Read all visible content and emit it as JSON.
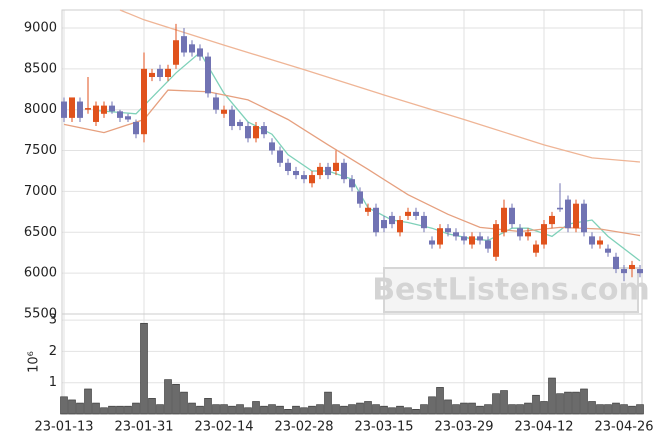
{
  "chart_data": {
    "type": "candlestick",
    "categories": [
      "23-01-13",
      null,
      null,
      null,
      null,
      null,
      null,
      null,
      null,
      null,
      "23-01-31",
      null,
      null,
      null,
      null,
      null,
      null,
      null,
      null,
      null,
      "23-02-14",
      null,
      null,
      null,
      null,
      null,
      null,
      null,
      null,
      null,
      "23-02-28",
      null,
      null,
      null,
      null,
      null,
      null,
      null,
      null,
      null,
      "23-03-15",
      null,
      null,
      null,
      null,
      null,
      null,
      null,
      null,
      null,
      "23-03-29",
      null,
      null,
      null,
      null,
      null,
      null,
      null,
      null,
      null,
      "23-04-12",
      null,
      null,
      null,
      null,
      null,
      null,
      null,
      null,
      null,
      "23-04-26",
      null,
      null
    ],
    "open": [
      8100,
      7900,
      8100,
      8000,
      7850,
      7950,
      8050,
      7980,
      7920,
      7850,
      7700,
      8400,
      8500,
      8400,
      8550,
      8900,
      8800,
      8750,
      8650,
      8150,
      7950,
      8000,
      7850,
      7800,
      7650,
      7800,
      7600,
      7500,
      7350,
      7250,
      7200,
      7100,
      7200,
      7300,
      7250,
      7350,
      7150,
      7000,
      6750,
      6800,
      6650,
      6700,
      6500,
      6700,
      6750,
      6700,
      6400,
      6350,
      6550,
      6500,
      6450,
      6350,
      6450,
      6400,
      6200,
      6500,
      6800,
      6550,
      6450,
      6250,
      6350,
      6600,
      6800,
      6900,
      6550,
      6850,
      6450,
      6350,
      6300,
      6200,
      6050,
      6050,
      6050
    ],
    "high": [
      8150,
      8150,
      8150,
      8400,
      8100,
      8100,
      8100,
      8000,
      7950,
      7880,
      8700,
      8500,
      8550,
      8550,
      9050,
      9000,
      8850,
      8800,
      8700,
      8200,
      8050,
      8050,
      7880,
      7850,
      7850,
      7850,
      7650,
      7550,
      7400,
      7300,
      7250,
      7250,
      7350,
      7350,
      7500,
      7400,
      7200,
      7050,
      6850,
      6850,
      6700,
      6750,
      6700,
      6800,
      6800,
      6750,
      6450,
      6600,
      6600,
      6550,
      6500,
      6500,
      6500,
      6450,
      6650,
      6900,
      6850,
      6600,
      6550,
      6400,
      6650,
      6750,
      7100,
      6950,
      6900,
      6900,
      6500,
      6450,
      6350,
      6250,
      6100,
      6150,
      6100
    ],
    "low": [
      7850,
      7850,
      7850,
      7950,
      7800,
      7900,
      7950,
      7850,
      7850,
      7650,
      7600,
      8350,
      8350,
      8350,
      8500,
      8650,
      8650,
      8600,
      8150,
      7950,
      7900,
      7750,
      7750,
      7600,
      7600,
      7650,
      7450,
      7300,
      7200,
      7150,
      7100,
      7050,
      7150,
      7150,
      7200,
      7100,
      7000,
      6800,
      6700,
      6450,
      6500,
      6550,
      6450,
      6650,
      6650,
      6500,
      6300,
      6300,
      6450,
      6400,
      6350,
      6300,
      6350,
      6250,
      6150,
      6450,
      6550,
      6400,
      6400,
      6200,
      6300,
      6550,
      6750,
      6500,
      6500,
      6450,
      6300,
      6300,
      6200,
      6000,
      5900,
      5950,
      5950
    ],
    "close": [
      7900,
      8150,
      7900,
      8020,
      8050,
      8050,
      7980,
      7900,
      7880,
      7700,
      8500,
      8450,
      8400,
      8500,
      8850,
      8700,
      8700,
      8650,
      8200,
      8000,
      8000,
      7800,
      7800,
      7650,
      7800,
      7700,
      7500,
      7350,
      7250,
      7200,
      7150,
      7200,
      7300,
      7200,
      7350,
      7150,
      7050,
      6850,
      6800,
      6500,
      6550,
      6600,
      6650,
      6750,
      6700,
      6550,
      6350,
      6550,
      6500,
      6450,
      6400,
      6450,
      6400,
      6300,
      6600,
      6800,
      6600,
      6450,
      6500,
      6350,
      6600,
      6700,
      6780,
      6550,
      6850,
      6500,
      6350,
      6400,
      6250,
      6050,
      6000,
      6100,
      6000
    ],
    "up_color": "#e0521c",
    "down_color": "#7173b3",
    "ylim": [
      5500,
      9220
    ],
    "yticks": [
      5500,
      6000,
      6500,
      7000,
      7500,
      8000,
      8500,
      9000
    ],
    "moving_averages": [
      {
        "color": "#7fd1b9",
        "x": [
          4,
          9,
          14,
          17,
          20,
          23,
          26,
          28,
          31,
          33,
          36,
          38,
          41,
          43,
          46,
          48,
          51,
          53,
          56,
          58,
          61,
          63,
          66,
          68,
          72
        ],
        "values": [
          7990,
          7950,
          8450,
          8700,
          8200,
          7850,
          7700,
          7450,
          7250,
          7250,
          7150,
          6800,
          6650,
          6620,
          6550,
          6480,
          6420,
          6400,
          6550,
          6550,
          6450,
          6600,
          6650,
          6450,
          6150
        ]
      },
      {
        "color": "#e6a07f",
        "x": [
          0,
          5,
          10,
          13,
          18,
          23,
          28,
          33,
          38,
          43,
          48,
          52,
          57,
          62,
          67,
          72
        ],
        "values": [
          7820,
          7720,
          7880,
          8240,
          8220,
          8120,
          7880,
          7570,
          7270,
          6960,
          6720,
          6560,
          6510,
          6560,
          6540,
          6460
        ]
      },
      {
        "color": "#efb596",
        "x": [
          7,
          10,
          20,
          30,
          40,
          50,
          60,
          66,
          72
        ],
        "values": [
          9220,
          9100,
          8790,
          8490,
          8180,
          7880,
          7570,
          7410,
          7360
        ]
      }
    ],
    "volume": {
      "values": [
        0.55,
        0.45,
        0.35,
        0.8,
        0.35,
        0.2,
        0.25,
        0.25,
        0.25,
        0.35,
        2.9,
        0.5,
        0.3,
        1.1,
        0.95,
        0.7,
        0.35,
        0.25,
        0.5,
        0.3,
        0.3,
        0.25,
        0.3,
        0.2,
        0.4,
        0.25,
        0.3,
        0.25,
        0.15,
        0.25,
        0.2,
        0.25,
        0.3,
        0.7,
        0.3,
        0.25,
        0.3,
        0.35,
        0.4,
        0.3,
        0.25,
        0.2,
        0.25,
        0.2,
        0.15,
        0.3,
        0.55,
        0.85,
        0.45,
        0.3,
        0.35,
        0.35,
        0.25,
        0.3,
        0.65,
        0.75,
        0.3,
        0.3,
        0.35,
        0.6,
        0.4,
        1.15,
        0.65,
        0.7,
        0.7,
        0.8,
        0.4,
        0.3,
        0.3,
        0.35,
        0.3,
        0.25,
        0.3
      ],
      "color": "#6b6b6b",
      "ylim": [
        0,
        3.1
      ],
      "yticks": [
        1,
        2,
        3
      ],
      "unit_label": "10⁶"
    },
    "grid": true,
    "watermark": "BestListens.com"
  }
}
